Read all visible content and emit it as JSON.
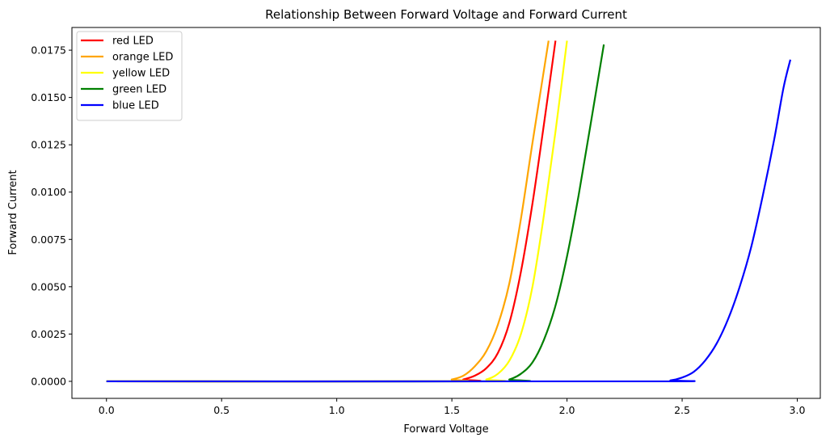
{
  "chart_data": {
    "type": "line",
    "title": "Relationship Between Forward Voltage and Forward Current",
    "xlabel": "Forward Voltage",
    "ylabel": "Forward Current",
    "xlim": [
      -0.15,
      3.1
    ],
    "ylim": [
      -0.0009,
      0.0187
    ],
    "xticks": [
      0.0,
      0.5,
      1.0,
      1.5,
      2.0,
      2.5,
      3.0
    ],
    "xtick_labels": [
      "0.0",
      "0.5",
      "1.0",
      "1.5",
      "2.0",
      "2.5",
      "3.0"
    ],
    "yticks": [
      0.0,
      0.0025,
      0.005,
      0.0075,
      0.01,
      0.0125,
      0.015,
      0.0175
    ],
    "ytick_labels": [
      "0.0000",
      "0.0025",
      "0.0050",
      "0.0075",
      "0.0100",
      "0.0125",
      "0.0150",
      "0.0175"
    ],
    "grid": false,
    "legend_position": "top-left",
    "series": [
      {
        "name": "red LED",
        "color": "#ff0000",
        "x": [
          0.0,
          1.5,
          1.55,
          1.6,
          1.65,
          1.7,
          1.75,
          1.8,
          1.85,
          1.9,
          1.95
        ],
        "y": [
          0.0,
          0.0,
          0.0001,
          0.0003,
          0.0007,
          0.0015,
          0.0031,
          0.0058,
          0.0094,
          0.0136,
          0.018
        ]
      },
      {
        "name": "orange LED",
        "color": "#ffa500",
        "x": [
          0.0,
          1.45,
          1.5,
          1.55,
          1.6,
          1.65,
          1.7,
          1.75,
          1.8,
          1.85,
          1.92
        ],
        "y": [
          0.0,
          0.0,
          0.0001,
          0.0003,
          0.0008,
          0.0016,
          0.003,
          0.0052,
          0.0086,
          0.0126,
          0.018
        ]
      },
      {
        "name": "yellow LED",
        "color": "#ffff00",
        "x": [
          0.0,
          1.6,
          1.65,
          1.7,
          1.75,
          1.8,
          1.85,
          1.9,
          1.95,
          2.0
        ],
        "y": [
          0.0,
          0.0,
          0.0001,
          0.0004,
          0.0011,
          0.0025,
          0.005,
          0.0088,
          0.0132,
          0.018
        ]
      },
      {
        "name": "green LED",
        "color": "#008000",
        "x": [
          0.0,
          1.7,
          1.75,
          1.8,
          1.85,
          1.9,
          1.95,
          2.0,
          2.05,
          2.1,
          2.16
        ],
        "y": [
          0.0,
          0.0,
          0.0001,
          0.0004,
          0.001,
          0.0022,
          0.004,
          0.0066,
          0.0098,
          0.0134,
          0.0178
        ]
      },
      {
        "name": "blue LED",
        "color": "#0000ff",
        "x": [
          0.0,
          2.35,
          2.45,
          2.5,
          2.55,
          2.6,
          2.65,
          2.7,
          2.75,
          2.8,
          2.85,
          2.9,
          2.94,
          2.97
        ],
        "y": [
          0.0,
          0.0,
          5e-05,
          0.0002,
          0.0005,
          0.0011,
          0.002,
          0.0033,
          0.005,
          0.0071,
          0.0098,
          0.0128,
          0.0155,
          0.017
        ]
      }
    ]
  }
}
